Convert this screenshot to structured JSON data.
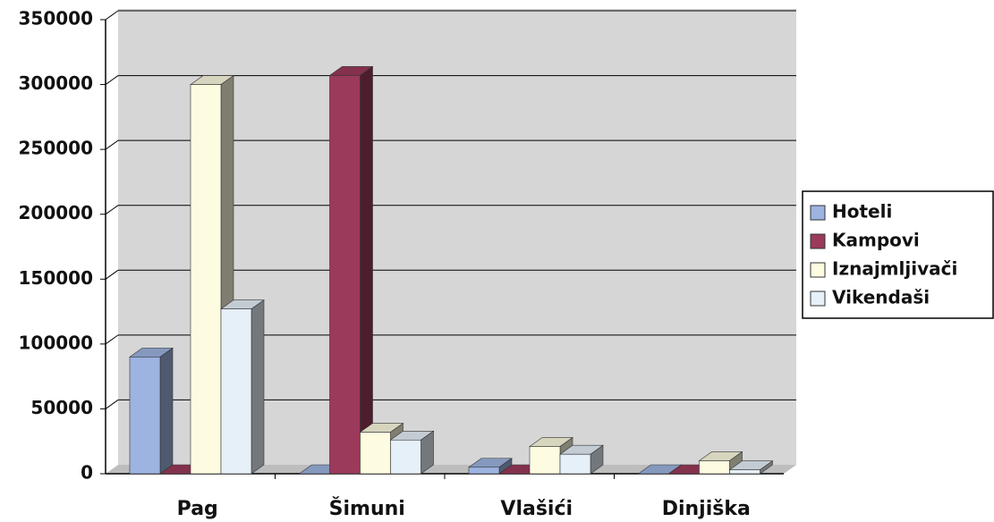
{
  "chart_data": {
    "type": "bar",
    "categories": [
      "Pag",
      "Šimuni",
      "Vlašići",
      "Dinjiška"
    ],
    "series": [
      {
        "name": "Hoteli",
        "color": "#9db3e0",
        "values": [
          90000,
          0,
          5000,
          0
        ]
      },
      {
        "name": "Kampovi",
        "color": "#9b3a5a",
        "values": [
          0,
          307000,
          0,
          0
        ]
      },
      {
        "name": "Iznajmljivači",
        "color": "#fdfbe0",
        "values": [
          300000,
          32000,
          21000,
          10000
        ]
      },
      {
        "name": "Vikendaši",
        "color": "#e6f0f8",
        "values": [
          127000,
          26000,
          15000,
          3000
        ]
      }
    ],
    "ylim": [
      0,
      350000
    ],
    "yticks": [
      0,
      50000,
      100000,
      150000,
      200000,
      250000,
      300000,
      350000
    ],
    "grid": true,
    "legend_position": "right"
  }
}
